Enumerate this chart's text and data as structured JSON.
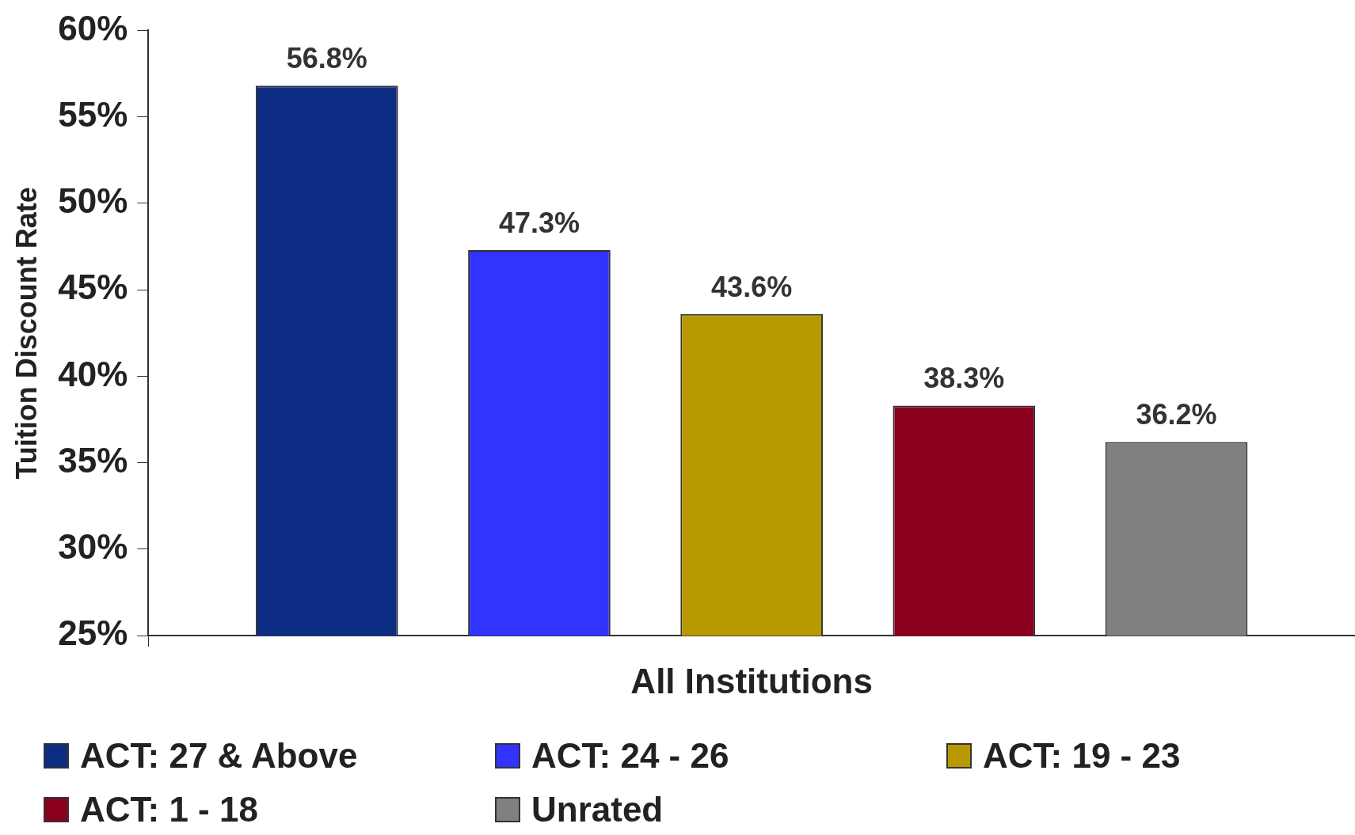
{
  "chart_data": {
    "type": "bar",
    "ylabel": "Tuition Discount Rate",
    "categories": [
      "All Institutions"
    ],
    "series": [
      {
        "name": "ACT: 27 & Above",
        "color": "#0d2d84",
        "values": [
          56.8
        ],
        "value_labels": [
          "56.8%"
        ]
      },
      {
        "name": "ACT: 24 - 26",
        "color": "#3333ff",
        "values": [
          47.3
        ],
        "value_labels": [
          "47.3%"
        ]
      },
      {
        "name": "ACT: 19 - 23",
        "color": "#b89a00",
        "values": [
          43.6
        ],
        "value_labels": [
          "43.6%"
        ]
      },
      {
        "name": "ACT: 1 - 18",
        "color": "#8b001e",
        "values": [
          38.3
        ],
        "value_labels": [
          "38.3%"
        ]
      },
      {
        "name": "Unrated",
        "color": "#808080",
        "values": [
          36.2
        ],
        "value_labels": [
          "36.2%"
        ]
      }
    ],
    "ylim": [
      25,
      60
    ],
    "yticks": [
      {
        "value": 25,
        "label": "25%"
      },
      {
        "value": 30,
        "label": "30%"
      },
      {
        "value": 35,
        "label": "35%"
      },
      {
        "value": 40,
        "label": "40%"
      },
      {
        "value": 45,
        "label": "45%"
      },
      {
        "value": 50,
        "label": "50%"
      },
      {
        "value": 55,
        "label": "55%"
      },
      {
        "value": 60,
        "label": "60%"
      }
    ],
    "grid": false,
    "legend": "bottom"
  }
}
